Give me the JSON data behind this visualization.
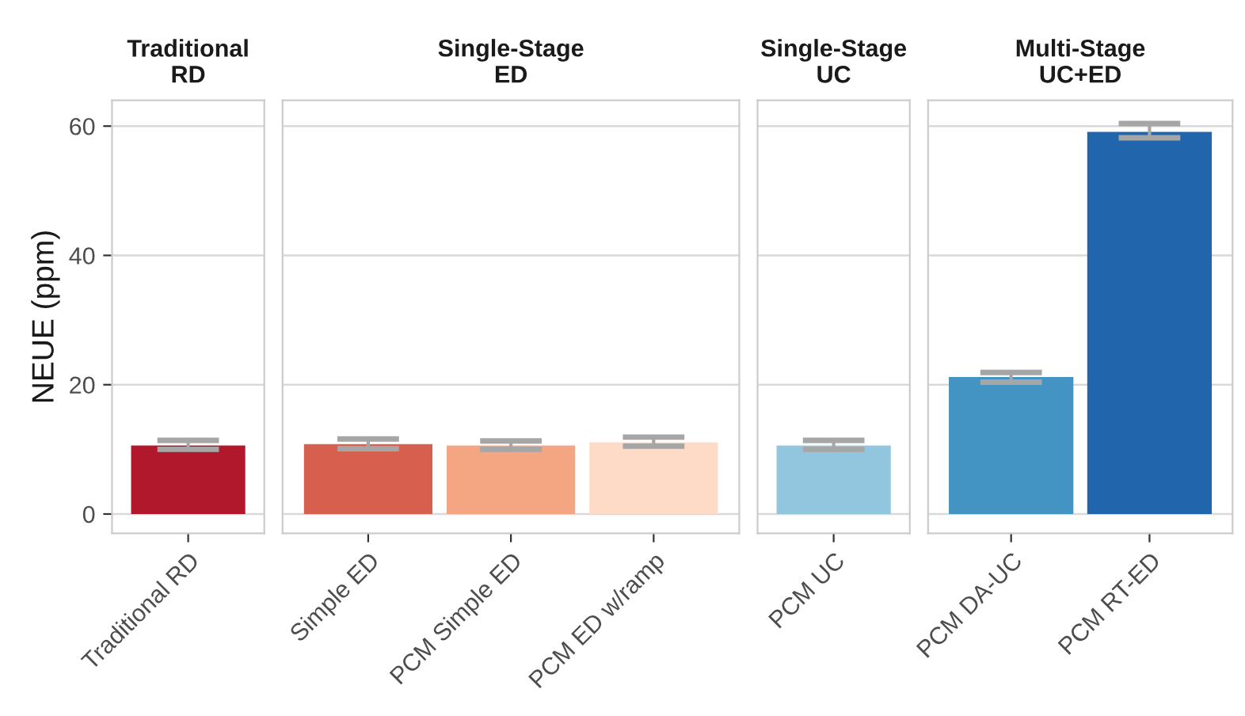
{
  "chart_data": [
    {
      "type": "bar",
      "title": "Traditional\nRD",
      "ylabel": "NEUE (ppm)",
      "categories": [
        "Traditional RD"
      ],
      "values": [
        10.6
      ],
      "colors": [
        "#b2182b"
      ],
      "errors": [
        [
          10.0,
          11.4
        ]
      ],
      "ylim": [
        -3,
        64
      ],
      "yticks": [
        0,
        20,
        40,
        60
      ],
      "grid": "y"
    },
    {
      "type": "bar",
      "title": "Single-Stage\nED",
      "categories": [
        "Simple ED",
        "PCM Simple ED",
        "PCM ED w/ramp"
      ],
      "values": [
        10.8,
        10.6,
        11.1
      ],
      "colors": [
        "#d6604d",
        "#f4a582",
        "#fddbc7"
      ],
      "errors": [
        [
          10.1,
          11.6
        ],
        [
          10.0,
          11.3
        ],
        [
          10.5,
          11.9
        ]
      ],
      "ylim": [
        -3,
        64
      ],
      "yticks": [
        0,
        20,
        40,
        60
      ],
      "grid": "y",
      "tick_labels": "x"
    },
    {
      "type": "bar",
      "title": "Single-Stage\nUC",
      "categories": [
        "PCM UC"
      ],
      "values": [
        10.6
      ],
      "colors": [
        "#92c5de"
      ],
      "errors": [
        [
          10.0,
          11.4
        ]
      ],
      "ylim": [
        -3,
        64
      ],
      "yticks": [
        0,
        20,
        40,
        60
      ],
      "grid": "y",
      "tick_labels": "x"
    },
    {
      "type": "bar",
      "title": "Multi-Stage\nUC+ED",
      "categories": [
        "PCM DA-UC",
        "PCM RT-ED"
      ],
      "values": [
        21.2,
        59.1
      ],
      "colors": [
        "#4393c3",
        "#2166ac"
      ],
      "errors": [
        [
          20.4,
          21.9
        ],
        [
          58.2,
          60.4
        ]
      ],
      "ylim": [
        -3,
        64
      ],
      "yticks": [
        0,
        20,
        40,
        60
      ],
      "grid": "y",
      "tick_labels": "x"
    }
  ]
}
